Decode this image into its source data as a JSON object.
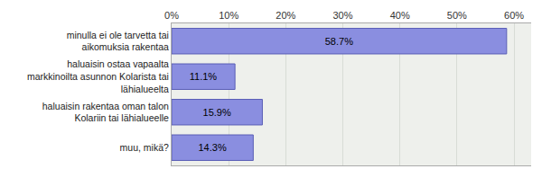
{
  "chart_data": {
    "type": "bar",
    "orientation": "horizontal",
    "categories": [
      "minulla ei ole tarvetta tai aikomuksia rakentaa",
      "haluaisin ostaa vapaalta markkinoilta asunnon Kolarista tai lähialueelta",
      "haluaisin rakentaa oman talon Kolariin tai lähialueelle",
      "muu, mikä?"
    ],
    "values": [
      58.7,
      11.1,
      15.9,
      14.3
    ],
    "value_labels": [
      "58.7%",
      "11.1%",
      "15.9%",
      "14.3%"
    ],
    "data_labels": true,
    "color": "#8a8ee0",
    "xlim": [
      0,
      63
    ],
    "xticks": [
      {
        "value": 0,
        "label": "0%"
      },
      {
        "value": 10,
        "label": "10%"
      },
      {
        "value": 20,
        "label": "20%"
      },
      {
        "value": 30,
        "label": "30%"
      },
      {
        "value": 40,
        "label": "40%"
      },
      {
        "value": 50,
        "label": "50%"
      },
      {
        "value": 60,
        "label": "60%"
      }
    ],
    "grid": true
  }
}
